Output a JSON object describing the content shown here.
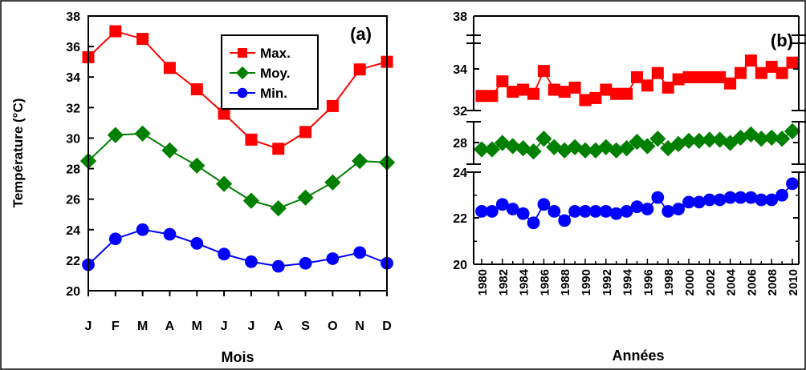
{
  "chart_data": [
    {
      "panel_label": "(a)",
      "type": "line",
      "xlabel": "Mois",
      "ylabel": "Température (°C)",
      "ylim": [
        20,
        38
      ],
      "yticks": [
        20,
        22,
        24,
        26,
        28,
        30,
        32,
        34,
        36,
        38
      ],
      "categories": [
        "J",
        "F",
        "M",
        "A",
        "M",
        "J",
        "J",
        "A",
        "S",
        "O",
        "N",
        "D"
      ],
      "legend_position": "top-right",
      "series": [
        {
          "name": "Max.",
          "color": "#ff0000",
          "marker": "square",
          "values": [
            35.3,
            37.0,
            36.5,
            34.6,
            33.2,
            31.6,
            29.9,
            29.3,
            30.4,
            32.1,
            34.5,
            35.0
          ]
        },
        {
          "name": "Moy.",
          "color": "#008000",
          "marker": "diamond",
          "values": [
            28.5,
            30.2,
            30.3,
            29.2,
            28.2,
            27.0,
            25.9,
            25.4,
            26.1,
            27.1,
            28.5,
            28.4
          ]
        },
        {
          "name": "Min.",
          "color": "#0000ff",
          "marker": "circle",
          "values": [
            21.7,
            23.4,
            24.0,
            23.7,
            23.1,
            22.4,
            21.9,
            21.6,
            21.8,
            22.1,
            22.5,
            21.8
          ]
        }
      ]
    },
    {
      "panel_label": "(b)",
      "type": "line",
      "xlabel": "Années",
      "broken_y_axis": true,
      "x": [
        1980,
        1981,
        1982,
        1983,
        1984,
        1985,
        1986,
        1987,
        1988,
        1989,
        1990,
        1991,
        1992,
        1993,
        1994,
        1995,
        1996,
        1997,
        1998,
        1999,
        2000,
        2001,
        2002,
        2003,
        2004,
        2005,
        2006,
        2007,
        2008,
        2009,
        2010
      ],
      "xtick_labels": [
        "1980",
        "1982",
        "1984",
        "1986",
        "1988",
        "1990",
        "1992",
        "1994",
        "1996",
        "1998",
        "2000",
        "2002",
        "2004",
        "2006",
        "2008",
        "2010"
      ],
      "y_segments": [
        {
          "range": [
            20,
            24
          ],
          "ticks": [
            "20",
            "22",
            "24"
          ]
        },
        {
          "range": [
            26,
            30
          ],
          "ticks": [
            "28"
          ]
        },
        {
          "range": [
            32,
            38
          ],
          "ticks": [
            "32",
            "34",
            "38"
          ]
        }
      ],
      "series": [
        {
          "name": "Max.",
          "color": "#ff0000",
          "marker": "square",
          "values": [
            32.7,
            32.7,
            33.4,
            32.9,
            33.0,
            32.8,
            33.9,
            33.0,
            32.9,
            33.1,
            32.5,
            32.6,
            33.0,
            32.8,
            32.8,
            33.6,
            33.2,
            33.8,
            33.1,
            33.5,
            33.6,
            33.6,
            33.6,
            33.6,
            33.3,
            33.8,
            34.4,
            33.8,
            34.1,
            33.8,
            34.3
          ]
        },
        {
          "name": "Moy.",
          "color": "#008000",
          "marker": "diamond",
          "values": [
            27.4,
            27.4,
            28.0,
            27.7,
            27.5,
            27.2,
            28.4,
            27.6,
            27.3,
            27.6,
            27.3,
            27.3,
            27.6,
            27.3,
            27.5,
            28.1,
            27.7,
            28.4,
            27.5,
            27.9,
            28.2,
            28.2,
            28.3,
            28.3,
            28.0,
            28.5,
            28.8,
            28.4,
            28.5,
            28.4,
            29.1
          ]
        },
        {
          "name": "Min.",
          "color": "#0000ff",
          "marker": "circle",
          "values": [
            22.3,
            22.3,
            22.6,
            22.4,
            22.2,
            21.8,
            22.6,
            22.3,
            21.9,
            22.3,
            22.3,
            22.3,
            22.3,
            22.2,
            22.3,
            22.5,
            22.4,
            22.9,
            22.3,
            22.4,
            22.7,
            22.7,
            22.8,
            22.8,
            22.9,
            22.9,
            22.9,
            22.8,
            22.8,
            23.0,
            23.5
          ]
        }
      ]
    }
  ]
}
